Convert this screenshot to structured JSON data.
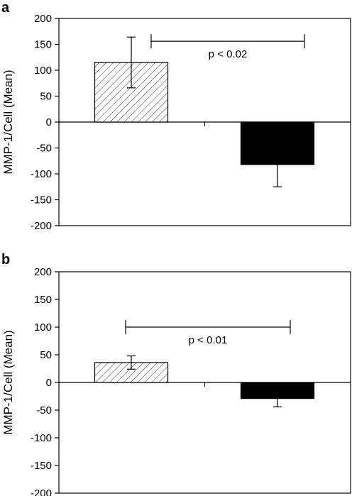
{
  "chart_data": [
    {
      "panel": "a",
      "type": "bar",
      "categories": [
        "",
        ""
      ],
      "values": [
        115,
        -82
      ],
      "error": [
        49,
        43
      ],
      "patterns": [
        "hatched",
        "solid"
      ],
      "ylabel": "MMP-1/Cell (Mean)",
      "ylim": [
        -200,
        200
      ],
      "yticks": [
        200,
        150,
        100,
        50,
        0,
        -50,
        -100,
        -150,
        -200
      ],
      "annotation": {
        "text": "p < 0.02",
        "bracket_y": 156
      }
    },
    {
      "panel": "b",
      "type": "bar",
      "categories": [
        "",
        ""
      ],
      "values": [
        36,
        -29
      ],
      "error": [
        12,
        15
      ],
      "patterns": [
        "hatched",
        "solid"
      ],
      "ylabel": "MMP-1/Cell (Mean)",
      "ylim": [
        -200,
        200
      ],
      "yticks": [
        200,
        150,
        100,
        50,
        0,
        -50,
        -100,
        -150,
        -200
      ],
      "annotation": {
        "text": "p < 0.01",
        "bracket_y": 100
      }
    }
  ]
}
